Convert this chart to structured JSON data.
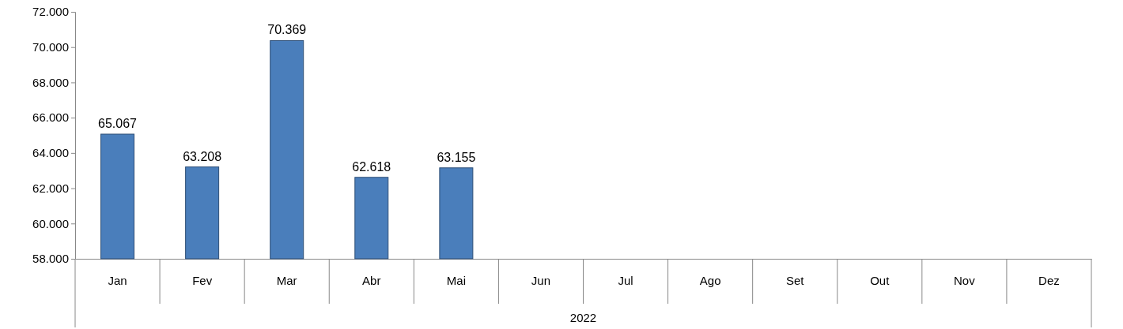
{
  "chart_data": {
    "type": "bar",
    "xlabel": "2022",
    "categories": [
      "Jan",
      "Fev",
      "Mar",
      "Abr",
      "Mai",
      "Jun",
      "Jul",
      "Ago",
      "Set",
      "Out",
      "Nov",
      "Dez"
    ],
    "values": [
      65067,
      63208,
      70369,
      62618,
      63155,
      null,
      null,
      null,
      null,
      null,
      null,
      null
    ],
    "value_labels": [
      "65.067",
      "63.208",
      "70.369",
      "62.618",
      "63.155",
      null,
      null,
      null,
      null,
      null,
      null,
      null
    ],
    "color": "#4a7ebb",
    "ylim": [
      58000,
      72000
    ],
    "yticks": [
      {
        "value": 58000,
        "label": "58.000"
      },
      {
        "value": 60000,
        "label": "60.000"
      },
      {
        "value": 62000,
        "label": "62.000"
      },
      {
        "value": 64000,
        "label": "64.000"
      },
      {
        "value": 66000,
        "label": "66.000"
      },
      {
        "value": 68000,
        "label": "68.000"
      },
      {
        "value": 70000,
        "label": "70.000"
      },
      {
        "value": 72000,
        "label": "72.000"
      }
    ],
    "grid": false
  }
}
